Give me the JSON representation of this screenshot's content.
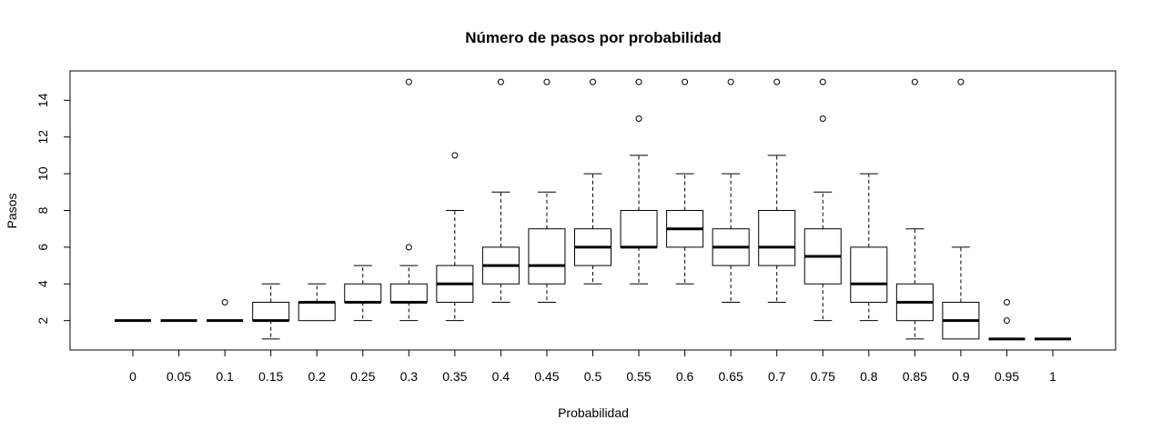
{
  "chart_data": {
    "type": "boxplot",
    "title": "Número de pasos por probabilidad",
    "xlabel": "Probabilidad",
    "ylabel": "Pasos",
    "ylim": [
      0.4,
      15.6
    ],
    "yticks": [
      2,
      4,
      6,
      8,
      10,
      12,
      14
    ],
    "grid": false,
    "categories": [
      "0",
      "0.05",
      "0.1",
      "0.15",
      "0.2",
      "0.25",
      "0.3",
      "0.35",
      "0.4",
      "0.45",
      "0.5",
      "0.55",
      "0.6",
      "0.65",
      "0.7",
      "0.75",
      "0.8",
      "0.85",
      "0.9",
      "0.95",
      "1"
    ],
    "boxes": [
      {
        "whisker_low": 2,
        "q1": 2,
        "median": 2,
        "q3": 2,
        "whisker_high": 2,
        "outliers": []
      },
      {
        "whisker_low": 2,
        "q1": 2,
        "median": 2,
        "q3": 2,
        "whisker_high": 2,
        "outliers": []
      },
      {
        "whisker_low": 2,
        "q1": 2,
        "median": 2,
        "q3": 2,
        "whisker_high": 2,
        "outliers": [
          3
        ]
      },
      {
        "whisker_low": 1,
        "q1": 2,
        "median": 2,
        "q3": 3,
        "whisker_high": 4,
        "outliers": []
      },
      {
        "whisker_low": 2,
        "q1": 2,
        "median": 3,
        "q3": 3,
        "whisker_high": 4,
        "outliers": []
      },
      {
        "whisker_low": 2,
        "q1": 3,
        "median": 3,
        "q3": 4,
        "whisker_high": 5,
        "outliers": []
      },
      {
        "whisker_low": 2,
        "q1": 3,
        "median": 3,
        "q3": 4,
        "whisker_high": 5,
        "outliers": [
          6,
          15
        ]
      },
      {
        "whisker_low": 2,
        "q1": 3,
        "median": 4,
        "q3": 5,
        "whisker_high": 8,
        "outliers": [
          11
        ]
      },
      {
        "whisker_low": 3,
        "q1": 4,
        "median": 5,
        "q3": 6,
        "whisker_high": 9,
        "outliers": [
          15
        ]
      },
      {
        "whisker_low": 3,
        "q1": 4,
        "median": 5,
        "q3": 7,
        "whisker_high": 9,
        "outliers": [
          15
        ]
      },
      {
        "whisker_low": 4,
        "q1": 5,
        "median": 6,
        "q3": 7,
        "whisker_high": 10,
        "outliers": [
          15
        ]
      },
      {
        "whisker_low": 4,
        "q1": 6,
        "median": 6,
        "q3": 8,
        "whisker_high": 11,
        "outliers": [
          13,
          15
        ]
      },
      {
        "whisker_low": 4,
        "q1": 6,
        "median": 7,
        "q3": 8,
        "whisker_high": 10,
        "outliers": [
          15
        ]
      },
      {
        "whisker_low": 3,
        "q1": 5,
        "median": 6,
        "q3": 7,
        "whisker_high": 10,
        "outliers": [
          15
        ]
      },
      {
        "whisker_low": 3,
        "q1": 5,
        "median": 6,
        "q3": 8,
        "whisker_high": 11,
        "outliers": [
          15
        ]
      },
      {
        "whisker_low": 2,
        "q1": 4,
        "median": 5.5,
        "q3": 7,
        "whisker_high": 9,
        "outliers": [
          13,
          15
        ]
      },
      {
        "whisker_low": 2,
        "q1": 3,
        "median": 4,
        "q3": 6,
        "whisker_high": 10,
        "outliers": []
      },
      {
        "whisker_low": 1,
        "q1": 2,
        "median": 3,
        "q3": 4,
        "whisker_high": 7,
        "outliers": [
          15
        ]
      },
      {
        "whisker_low": 1,
        "q1": 1,
        "median": 2,
        "q3": 3,
        "whisker_high": 6,
        "outliers": [
          15
        ]
      },
      {
        "whisker_low": 1,
        "q1": 1,
        "median": 1,
        "q3": 1,
        "whisker_high": 1,
        "outliers": [
          2,
          3
        ]
      },
      {
        "whisker_low": 1,
        "q1": 1,
        "median": 1,
        "q3": 1,
        "whisker_high": 1,
        "outliers": []
      }
    ]
  }
}
